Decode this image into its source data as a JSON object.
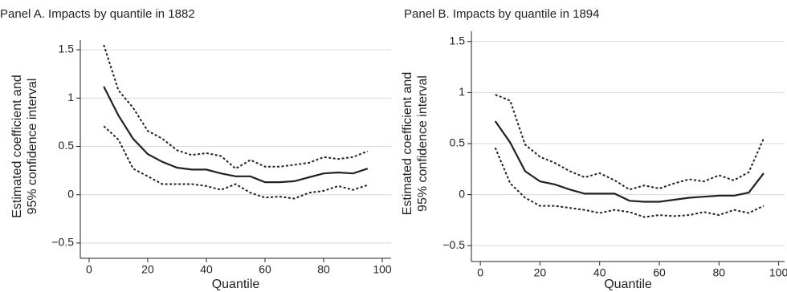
{
  "chart_data": [
    {
      "type": "line",
      "title": "Panel A. Impacts by quantile in 1882",
      "ylabel": [
        "Estimated coefficient and",
        "95% confidence interval"
      ],
      "xlabel": "Quantile",
      "x": [
        5,
        10,
        15,
        20,
        25,
        30,
        35,
        40,
        45,
        50,
        55,
        60,
        65,
        70,
        75,
        80,
        85,
        90,
        95
      ],
      "series": [
        {
          "color": "#222222",
          "linestyle": "solid",
          "values": [
            1.12,
            0.82,
            0.58,
            0.42,
            0.34,
            0.28,
            0.26,
            0.26,
            0.22,
            0.19,
            0.19,
            0.13,
            0.13,
            0.14,
            0.18,
            0.22,
            0.23,
            0.22,
            0.27
          ]
        },
        {
          "color": "#222222",
          "linestyle": "dashed",
          "values": [
            1.55,
            1.08,
            0.9,
            0.66,
            0.58,
            0.46,
            0.41,
            0.43,
            0.4,
            0.27,
            0.36,
            0.29,
            0.29,
            0.31,
            0.33,
            0.39,
            0.37,
            0.39,
            0.45
          ]
        },
        {
          "color": "#222222",
          "linestyle": "dashed",
          "values": [
            0.71,
            0.57,
            0.27,
            0.19,
            0.11,
            0.11,
            0.11,
            0.09,
            0.05,
            0.11,
            0.02,
            -0.03,
            -0.02,
            -0.04,
            0.02,
            0.04,
            0.09,
            0.05,
            0.1
          ]
        }
      ],
      "xlim": [
        -3,
        103
      ],
      "xticks": [
        0,
        20,
        40,
        60,
        80,
        100
      ],
      "ylim": [
        -0.6,
        1.6
      ],
      "yticks": [
        {
          "value": -0.5,
          "label": "−0.5"
        },
        0,
        0.5,
        1,
        1.5
      ],
      "grid": true
    },
    {
      "type": "line",
      "title": "Panel B.  Impacts by quantile in 1894",
      "ylabel": [
        "Estimated coefficient and",
        "95% confidence interval"
      ],
      "xlabel": "Quantile",
      "x": [
        5,
        10,
        15,
        20,
        25,
        30,
        35,
        40,
        45,
        50,
        55,
        60,
        65,
        70,
        75,
        80,
        85,
        90,
        95
      ],
      "series": [
        {
          "color": "#222222",
          "linestyle": "solid",
          "values": [
            0.72,
            0.51,
            0.23,
            0.13,
            0.1,
            0.05,
            0.01,
            0.01,
            0.01,
            -0.06,
            -0.07,
            -0.07,
            -0.05,
            -0.03,
            -0.02,
            -0.01,
            -0.01,
            0.02,
            0.21
          ]
        },
        {
          "color": "#222222",
          "linestyle": "dashed",
          "values": [
            0.98,
            0.92,
            0.49,
            0.37,
            0.31,
            0.23,
            0.17,
            0.21,
            0.14,
            0.05,
            0.09,
            0.06,
            0.11,
            0.15,
            0.13,
            0.19,
            0.14,
            0.22,
            0.55
          ]
        },
        {
          "color": "#222222",
          "linestyle": "dashed",
          "values": [
            0.46,
            0.11,
            -0.03,
            -0.11,
            -0.11,
            -0.13,
            -0.15,
            -0.18,
            -0.15,
            -0.17,
            -0.22,
            -0.2,
            -0.21,
            -0.2,
            -0.17,
            -0.2,
            -0.15,
            -0.18,
            -0.11
          ]
        }
      ],
      "xlim": [
        -3,
        102
      ],
      "xticks": [
        0,
        20,
        40,
        60,
        80,
        100
      ],
      "ylim": [
        -0.6,
        1.6
      ],
      "yticks": [
        {
          "value": -0.5,
          "label": "−0.5"
        },
        0,
        0.5,
        1,
        1.5
      ],
      "grid": true
    }
  ]
}
